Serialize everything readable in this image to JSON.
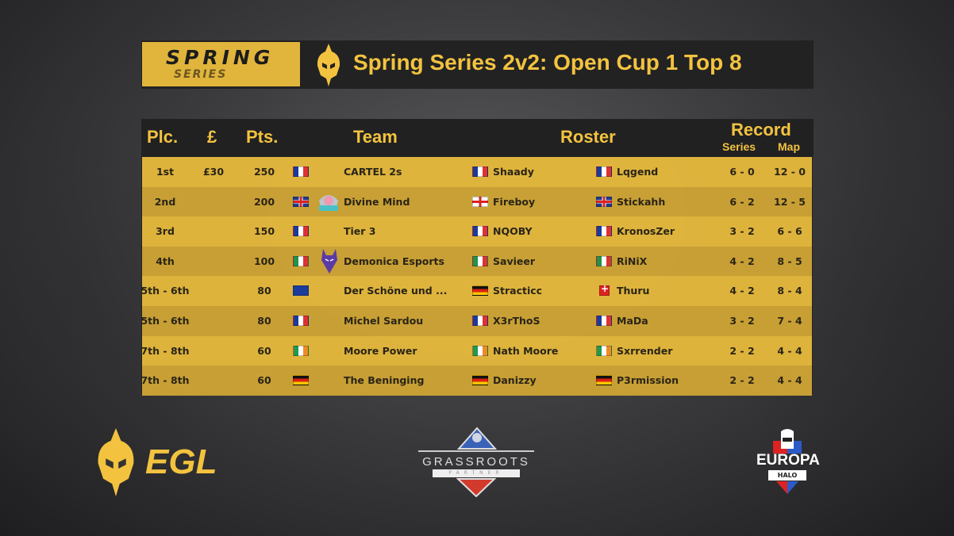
{
  "banner": {
    "spring": "SPRING",
    "series": "SERIES",
    "title": "Spring Series 2v2: Open Cup 1 Top 8"
  },
  "colors": {
    "accent": "#f3c33f",
    "row_light": "#e4b83c",
    "row_dark": "#cda334",
    "bar": "#222223"
  },
  "table": {
    "headers": {
      "place": "Plc.",
      "prize": "£",
      "points": "Pts.",
      "team": "Team",
      "roster": "Roster",
      "record": "Record",
      "series": "Series",
      "map": "Map"
    },
    "rows": [
      {
        "place": "1st",
        "prize": "£30",
        "points": "250",
        "flag": "fr",
        "logo": "",
        "team": "CARTEL 2s",
        "p1_flag": "fr",
        "p1": "Shaady",
        "p2_flag": "fr",
        "p2": "Lqgend",
        "series": "6 - 0",
        "map": "12 - 0"
      },
      {
        "place": "2nd",
        "prize": "",
        "points": "200",
        "flag": "gb",
        "logo": "divine-mind-logo",
        "team": "Divine Mind",
        "p1_flag": "en",
        "p1": "Fireboy",
        "p2_flag": "gb",
        "p2": "Stickahh",
        "series": "6 - 2",
        "map": "12 - 5"
      },
      {
        "place": "3rd",
        "prize": "",
        "points": "150",
        "flag": "fr",
        "logo": "",
        "team": "Tier 3",
        "p1_flag": "fr",
        "p1": "NQOBY",
        "p2_flag": "fr",
        "p2": "KronosZer",
        "series": "3 - 2",
        "map": "6 - 6"
      },
      {
        "place": "4th",
        "prize": "",
        "points": "100",
        "flag": "it",
        "logo": "demonica-logo",
        "team": "Demonica Esports",
        "p1_flag": "it",
        "p1": "Savieer",
        "p2_flag": "it",
        "p2": "RiNiX",
        "series": "4 - 2",
        "map": "8 - 5"
      },
      {
        "place": "5th - 6th",
        "prize": "",
        "points": "80",
        "flag": "eu",
        "logo": "",
        "team": "Der Schöne und ...",
        "p1_flag": "de",
        "p1": "Stracticc",
        "p2_flag": "ch",
        "p2": "Thuru",
        "series": "4 - 2",
        "map": "8 - 4"
      },
      {
        "place": "5th - 6th",
        "prize": "",
        "points": "80",
        "flag": "fr",
        "logo": "",
        "team": "Michel Sardou",
        "p1_flag": "fr",
        "p1": "X3rThoS",
        "p2_flag": "fr",
        "p2": "MaDa",
        "series": "3 - 2",
        "map": "7 - 4"
      },
      {
        "place": "7th - 8th",
        "prize": "",
        "points": "60",
        "flag": "ie",
        "logo": "",
        "team": "Moore Power",
        "p1_flag": "ie",
        "p1": "Nath Moore",
        "p2_flag": "ie",
        "p2": "Sxrrender",
        "series": "2 - 2",
        "map": "4 - 4"
      },
      {
        "place": "7th - 8th",
        "prize": "",
        "points": "60",
        "flag": "de",
        "logo": "",
        "team": "The Beninging",
        "p1_flag": "de",
        "p1": "Danizzy",
        "p2_flag": "de",
        "p2": "P3rmission",
        "series": "2 - 2",
        "map": "4 - 4"
      }
    ]
  },
  "footer": {
    "egl": "EGL",
    "grassroots": "GRASSROOTS",
    "partner": "PARTNER",
    "europa": "EUROPA",
    "halo": "HALO"
  }
}
